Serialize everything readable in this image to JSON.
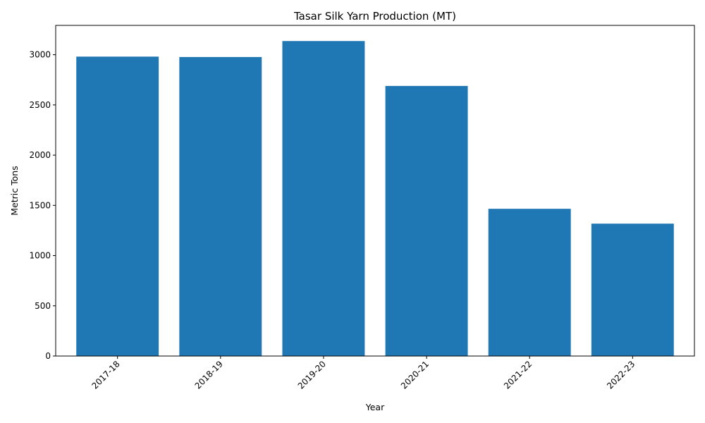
{
  "chart_data": {
    "type": "bar",
    "title": "Tasar Silk Yarn Production (MT)",
    "xlabel": "Year",
    "ylabel": "Metric Tons",
    "categories": [
      "2017-18",
      "2018-19",
      "2019-20",
      "2020-21",
      "2021-22",
      "2022-23"
    ],
    "values": [
      2981,
      2977,
      3136,
      2689,
      1466,
      1318
    ],
    "ylim": [
      0,
      3292
    ],
    "yticks": [
      0,
      500,
      1000,
      1500,
      2000,
      2500,
      3000
    ],
    "xtick_rotation_deg": 45,
    "bar_color": "#1f77b4",
    "grid": false,
    "legend": "none"
  }
}
